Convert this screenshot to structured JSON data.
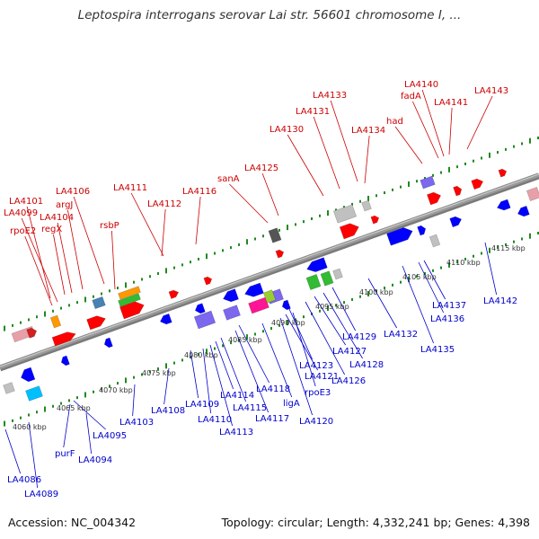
{
  "title": "Leptospira interrogans serovar Lai str. 56601 chromosome I, ...",
  "footer": {
    "accession": "Accession: NC_004342",
    "summary": "Topology: circular; Length: 4,332,241 bp; Genes: 4,398"
  },
  "colors": {
    "backbone": "#9a9a9a",
    "upper_labels": "#cc0000",
    "lower_labels": "#0000cc",
    "ruler_ticks": "#1f8a1f"
  },
  "kbp_labels": [
    "4060 kbp",
    "4065 kbp",
    "4070 kbp",
    "4075 kbp",
    "4080 kbp",
    "4085 kbp",
    "4090 kbp",
    "4095 kbp",
    "4100 kbp",
    "4105 kbp",
    "4110 kbp",
    "4115 kbp"
  ],
  "upper_gene_labels": [
    "LA4101",
    "LA4099",
    "rpoE2",
    "regX",
    "LA4104",
    "argJ",
    "LA4106",
    "rsbP",
    "LA4111",
    "LA4112",
    "LA4116",
    "sanA",
    "LA4125",
    "LA4130",
    "LA4131",
    "LA4133",
    "LA4134",
    "had",
    "fadA",
    "LA4140",
    "LA4141",
    "LA4143"
  ],
  "lower_gene_labels": [
    "LA4086",
    "LA4089",
    "purF",
    "LA4094",
    "LA4095",
    "LA4103",
    "LA4108",
    "LA4109",
    "LA4110",
    "LA4113",
    "LA4114",
    "LA4115",
    "LA4117",
    "LA4118",
    "ligA",
    "LA4120",
    "LA4121",
    "rpoE3",
    "LA4123",
    "LA4126",
    "LA4127",
    "LA4128",
    "LA4129",
    "LA4132",
    "LA4135",
    "LA4136",
    "LA4137",
    "LA4142"
  ]
}
